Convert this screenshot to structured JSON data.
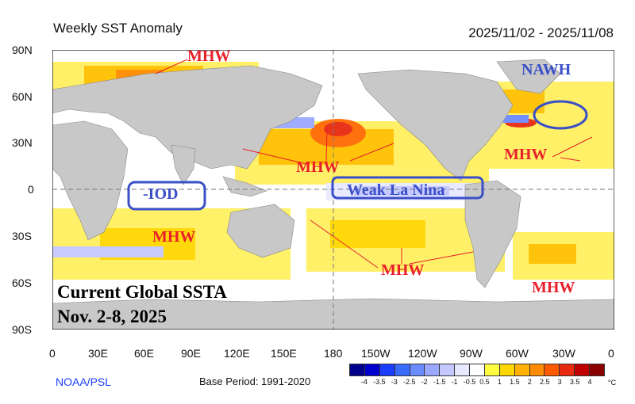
{
  "header": {
    "title": "Weekly SST Anomaly",
    "date_range": "2025/11/02 - 2025/11/08"
  },
  "axes": {
    "lat_labels": [
      "90N",
      "60N",
      "30N",
      "0",
      "30S",
      "60S",
      "90S"
    ],
    "lon_labels": [
      "0",
      "30E",
      "60E",
      "90E",
      "120E",
      "150E",
      "180",
      "150W",
      "120W",
      "90W",
      "60W",
      "30W",
      "0"
    ]
  },
  "annotations": {
    "mhw_arctic": "MHW",
    "nawh": "NAWH",
    "mhw_npac": "MHW",
    "mhw_natl": "MHW",
    "iod": "-IOD",
    "la_nina": "Weak La Nina",
    "mhw_sio": "MHW",
    "mhw_spac": "MHW",
    "mhw_satl": "MHW"
  },
  "overlay": {
    "line1": "Current Global SSTA",
    "line2": "Nov. 2-8, 2025"
  },
  "footer": {
    "source": "NOAA/PSL",
    "base_period": "Base Period: 1991-2020"
  },
  "colorbar": {
    "labels": [
      "-4",
      "-3.5",
      "-3",
      "-2.5",
      "-2",
      "-1.5",
      "-1",
      "-0.5",
      "0.5",
      "1",
      "1.5",
      "2",
      "2.5",
      "3",
      "3.5",
      "4"
    ],
    "unit": "°C",
    "colors": [
      "#00008b",
      "#0000cd",
      "#1a3cff",
      "#3a6bff",
      "#6b8cff",
      "#9aa8ff",
      "#c4c8ff",
      "#e8e8ff",
      "#ffffff",
      "#ffff40",
      "#ffd700",
      "#ffb000",
      "#ff8c00",
      "#ff5a00",
      "#e82a10",
      "#c00000",
      "#8b0000"
    ]
  },
  "colors": {
    "land": "#c8c8c8",
    "annotation_red": "#e8202a",
    "annotation_blue": "#3a4fc8",
    "warm_light": "#fff060",
    "warm_mid": "#ffc000",
    "warm_high": "#ff6a00",
    "cool_light": "#c8d0ff"
  }
}
